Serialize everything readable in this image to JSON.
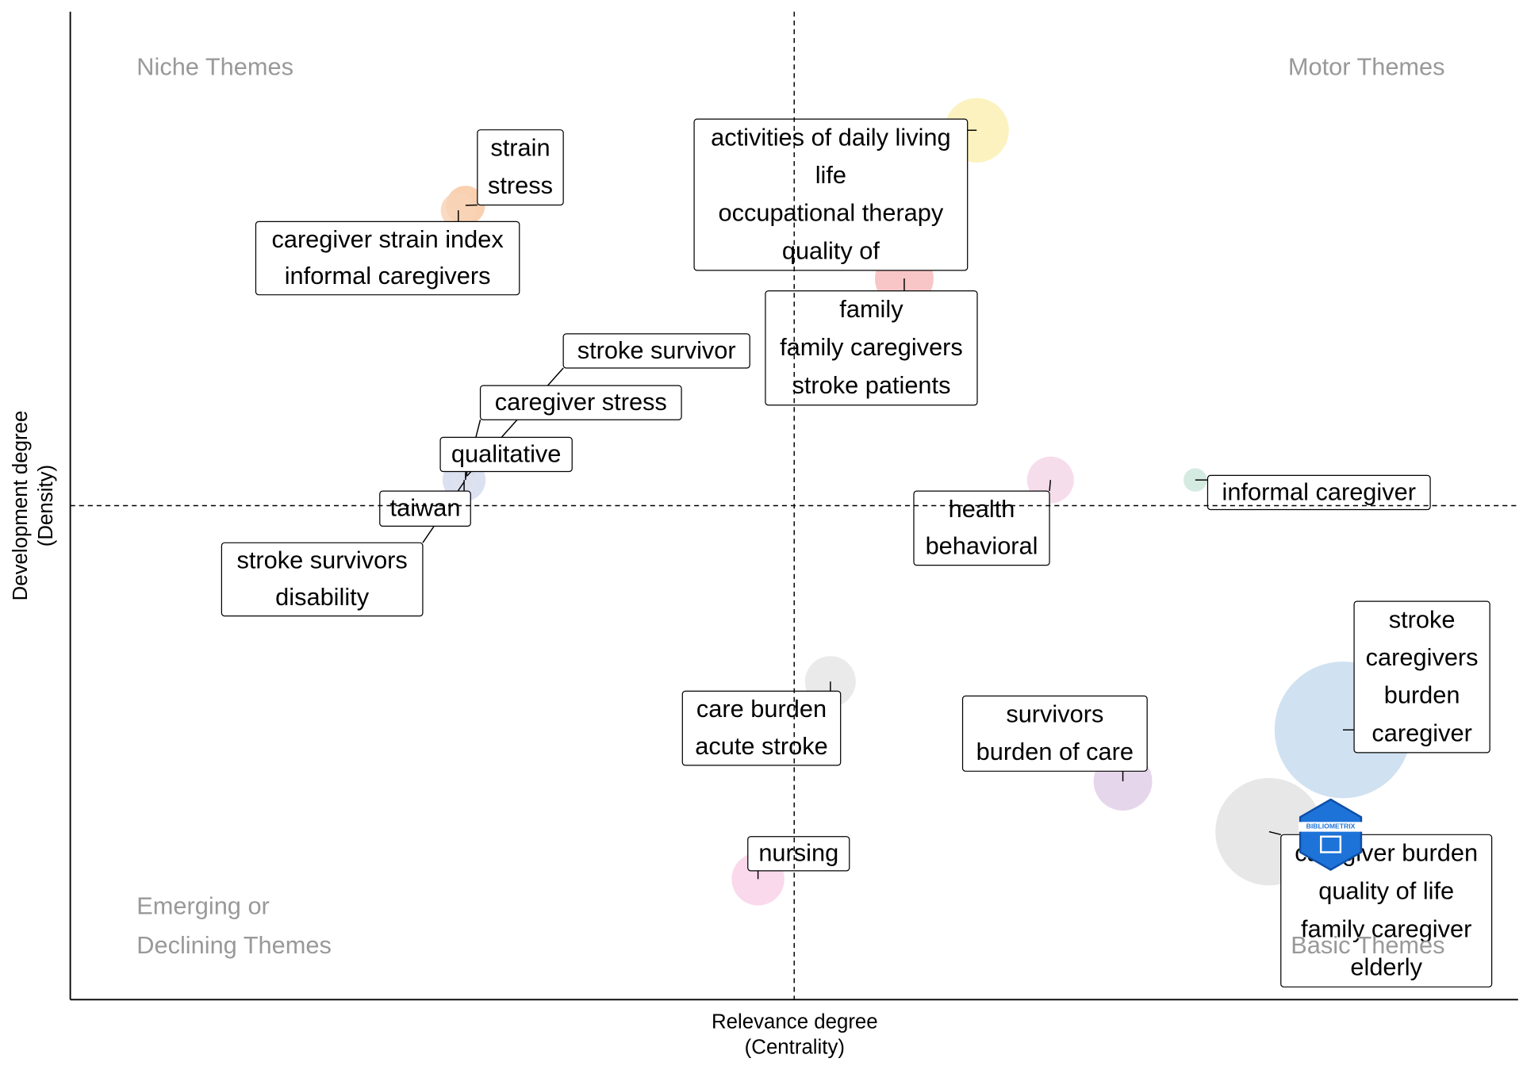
{
  "chart_data": {
    "type": "bubble",
    "xlabel": [
      "Relevance degree",
      "(Centrality)"
    ],
    "ylabel": [
      "Development degree",
      "(Density)"
    ],
    "xlim": [
      0,
      100
    ],
    "ylim": [
      0,
      100
    ],
    "vline": 50,
    "hline": 50,
    "quadrants": {
      "niche": "Niche Themes",
      "motor": "Motor Themes",
      "emerging": [
        "Emerging or",
        "Declining Themes"
      ],
      "basic": "Basic Themes"
    },
    "logo": "BIBLIOMETRIX",
    "clusters": [
      {
        "x": 62.6,
        "y": 88.0,
        "size": 33,
        "color": "#fbf0b4",
        "labels": [
          "activities of daily living",
          "life",
          "occupational therapy",
          "quality of"
        ]
      },
      {
        "x": 27.3,
        "y": 80.4,
        "size": 20,
        "color": "#f8c8a2",
        "labels": [
          "strain",
          "stress"
        ]
      },
      {
        "x": 26.8,
        "y": 79.9,
        "size": 18,
        "color": "#f9d3b6",
        "labels": [
          "caregiver strain index",
          "informal caregivers"
        ]
      },
      {
        "x": 57.6,
        "y": 73.0,
        "size": 30,
        "color": "#f7bcbc",
        "labels": [
          "family",
          "family caregivers",
          "stroke patients"
        ]
      },
      {
        "x": 27.4,
        "y": 53.0,
        "size": 8,
        "color": "#c7d9c2",
        "labels": [
          "stroke survivor"
        ]
      },
      {
        "x": 27.3,
        "y": 52.8,
        "size": 9,
        "color": "#b5c9ab",
        "labels": [
          "caregiver stress"
        ]
      },
      {
        "x": 27.3,
        "y": 52.6,
        "size": 10,
        "color": "#8fac86",
        "labels": [
          "qualitative"
        ]
      },
      {
        "x": 27.2,
        "y": 52.6,
        "size": 22,
        "color": "#d5dcee",
        "labels": [
          "taiwan"
        ]
      },
      {
        "x": 27.2,
        "y": 52.4,
        "size": 12,
        "color": "#dfe3f0",
        "labels": [
          "stroke survivors",
          "disability"
        ]
      },
      {
        "x": 67.7,
        "y": 52.6,
        "size": 24,
        "color": "#f5d7e8",
        "labels": [
          "health",
          "behavioral"
        ]
      },
      {
        "x": 77.7,
        "y": 52.6,
        "size": 12,
        "color": "#cde8dc",
        "labels": [
          "informal caregiver"
        ]
      },
      {
        "x": 52.5,
        "y": 32.2,
        "size": 26,
        "color": "#e6e6e6",
        "labels": [
          "care burden",
          "acute stroke"
        ]
      },
      {
        "x": 72.7,
        "y": 22.1,
        "size": 30,
        "color": "#e2cfe8",
        "labels": [
          "survivors",
          "burden of care"
        ]
      },
      {
        "x": 87.9,
        "y": 27.3,
        "size": 70,
        "color": "#c8dcef",
        "labels": [
          "stroke",
          "caregivers",
          "burden",
          "caregiver"
        ]
      },
      {
        "x": 82.8,
        "y": 17.0,
        "size": 55,
        "color": "#e3e3e3",
        "labels": [
          "caregiver burden",
          "quality of life",
          "family caregiver",
          "elderly"
        ]
      },
      {
        "x": 47.5,
        "y": 12.2,
        "size": 27,
        "color": "#f9d2e9",
        "labels": [
          "nursing"
        ]
      }
    ]
  }
}
